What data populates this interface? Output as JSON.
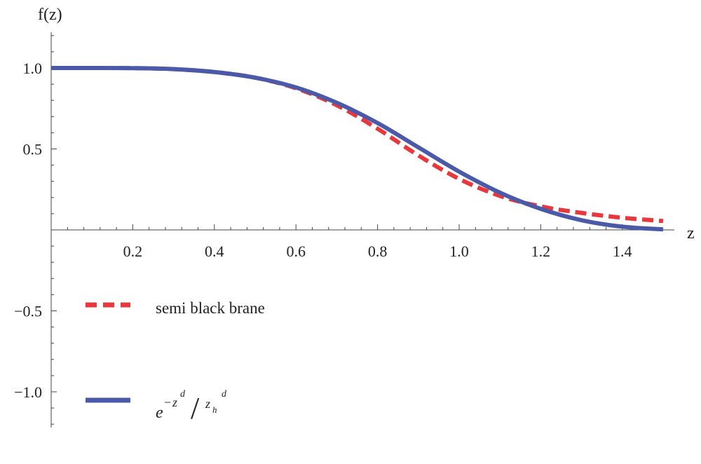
{
  "chart_data": {
    "type": "line",
    "xlabel": "z",
    "ylabel": "f(z)",
    "xlim": [
      0,
      1.5
    ],
    "ylim": [
      -1.22,
      1.22
    ],
    "x_ticks": [
      {
        "value": 0.2,
        "label": "0.2"
      },
      {
        "value": 0.4,
        "label": "0.4"
      },
      {
        "value": 0.6,
        "label": "0.6"
      },
      {
        "value": 0.8,
        "label": "0.8"
      },
      {
        "value": 1.0,
        "label": "1.0"
      },
      {
        "value": 1.2,
        "label": "1.2"
      },
      {
        "value": 1.4,
        "label": "1.4"
      }
    ],
    "y_ticks": [
      {
        "value": 1.0,
        "label": "1.0"
      },
      {
        "value": 0.5,
        "label": "0.5"
      },
      {
        "value": -0.5,
        "label": "−0.5"
      },
      {
        "value": -1.0,
        "label": "−1.0"
      }
    ],
    "grid": false,
    "legend_position": "lower-left",
    "series": [
      {
        "name": "semi black brane",
        "style": "dashed",
        "color": "#e8383d",
        "x": [
          0,
          0.1,
          0.2,
          0.3,
          0.4,
          0.5,
          0.6,
          0.7,
          0.8,
          0.9,
          1.0,
          1.1,
          1.2,
          1.3,
          1.4,
          1.5
        ],
        "y": [
          1.0,
          1.0,
          0.999,
          0.993,
          0.975,
          0.94,
          0.875,
          0.77,
          0.625,
          0.46,
          0.315,
          0.21,
          0.145,
          0.105,
          0.075,
          0.055
        ]
      },
      {
        "name": "e^{-z^d/z_h^d}",
        "style": "solid",
        "color": "#4a5aa8",
        "x": [
          0,
          0.1,
          0.2,
          0.3,
          0.4,
          0.5,
          0.6,
          0.7,
          0.8,
          0.9,
          1.0,
          1.1,
          1.2,
          1.3,
          1.4,
          1.5
        ],
        "y": [
          1.0,
          1.0,
          0.999,
          0.993,
          0.975,
          0.94,
          0.88,
          0.785,
          0.66,
          0.51,
          0.36,
          0.23,
          0.13,
          0.06,
          0.02,
          0.003
        ]
      }
    ],
    "legend": {
      "entry1_label": "semi black brane",
      "entry2_base": "e",
      "entry2_minus": "−",
      "entry2_z": "z",
      "entry2_d": "d",
      "entry2_slash": "/",
      "entry2_zh": "z",
      "entry2_h": "h"
    }
  }
}
